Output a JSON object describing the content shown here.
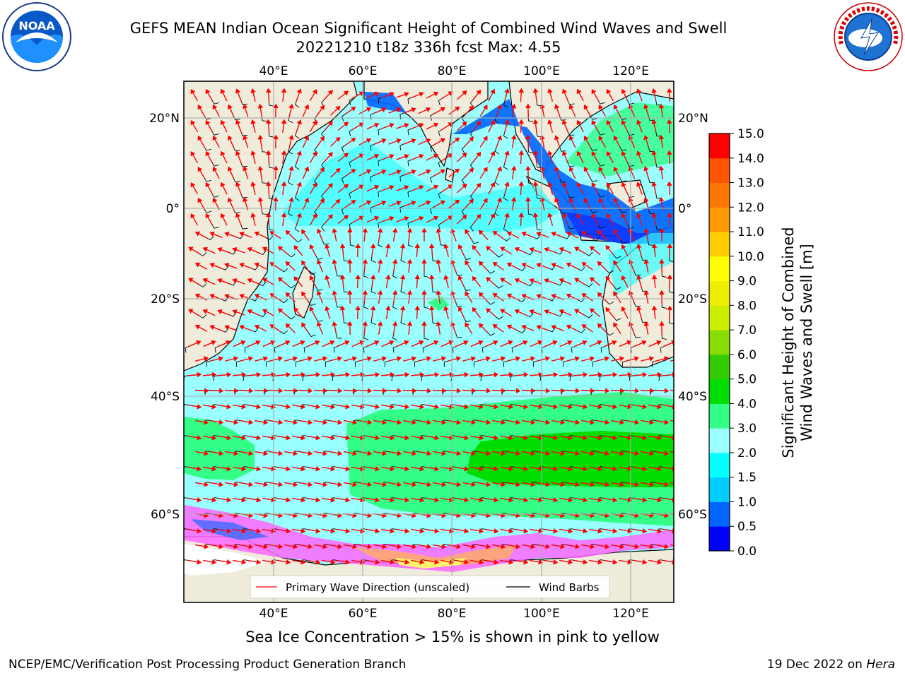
{
  "header": {
    "title_line1": "GEFS MEAN Indian Ocean Significant Height of Combined Wind Waves and Swell",
    "title_line2": "20221210 t18z 336h fcst    Max: 4.55"
  },
  "logos": {
    "noaa": {
      "icon": "noaa-logo",
      "text": "NOAA",
      "ring_text": "NATIONAL OCEANIC AND ATMOSPHERIC ADMINISTRATION · U.S. DEPARTMENT OF COMMERCE"
    },
    "nws": {
      "icon": "nws-logo",
      "ring_text": "NATIONAL WEATHER SERVICE"
    }
  },
  "map": {
    "top_lon_labels": [
      "40°E",
      "60°E",
      "80°E",
      "100°E",
      "120°E"
    ],
    "bottom_lon_labels": [
      "40°E",
      "60°E",
      "80°E",
      "100°E",
      "120°E"
    ],
    "left_lat_labels": [
      "20°N",
      "0°",
      "20°S",
      "40°S",
      "60°S"
    ],
    "right_lat_labels": [
      "20°N",
      "0°",
      "20°S",
      "40°S",
      "60°S"
    ],
    "land_color": "#efecdc",
    "ice_colors": [
      "#ff66ff",
      "#ffaa66",
      "#ffff66"
    ]
  },
  "legend": {
    "wave_direction_label": "Primary Wave Direction (unscaled)",
    "wave_direction_color": "#ff0000",
    "wind_barbs_label": "Wind Barbs",
    "wind_barbs_color": "#000000"
  },
  "colorbar": {
    "label_line1": "Significant Height of Combined",
    "label_line2": "Wind Waves and Swell [m]",
    "ticks": [
      "0.0",
      "0.5",
      "1.0",
      "1.5",
      "2.0",
      "3.0",
      "4.0",
      "5.0",
      "6.0",
      "7.0",
      "8.0",
      "9.0",
      "10.0",
      "11.0",
      "12.0",
      "13.0",
      "14.0",
      "15.0"
    ],
    "colors": [
      "#0000ff",
      "#0066ff",
      "#00ccff",
      "#00ffff",
      "#99ffff",
      "#33ff88",
      "#00dd00",
      "#33cc00",
      "#88dd00",
      "#ccee00",
      "#eeee00",
      "#ffff00",
      "#ffcc00",
      "#ff9900",
      "#ff7700",
      "#ff5500",
      "#ff0000"
    ]
  },
  "caption": "Sea Ice Concentration > 15% is shown in pink to yellow",
  "footer": {
    "left": "NCEP/EMC/Verification Post Processing Product Generation Branch",
    "date": "19 Dec 2022 on ",
    "machine": "Hera"
  }
}
